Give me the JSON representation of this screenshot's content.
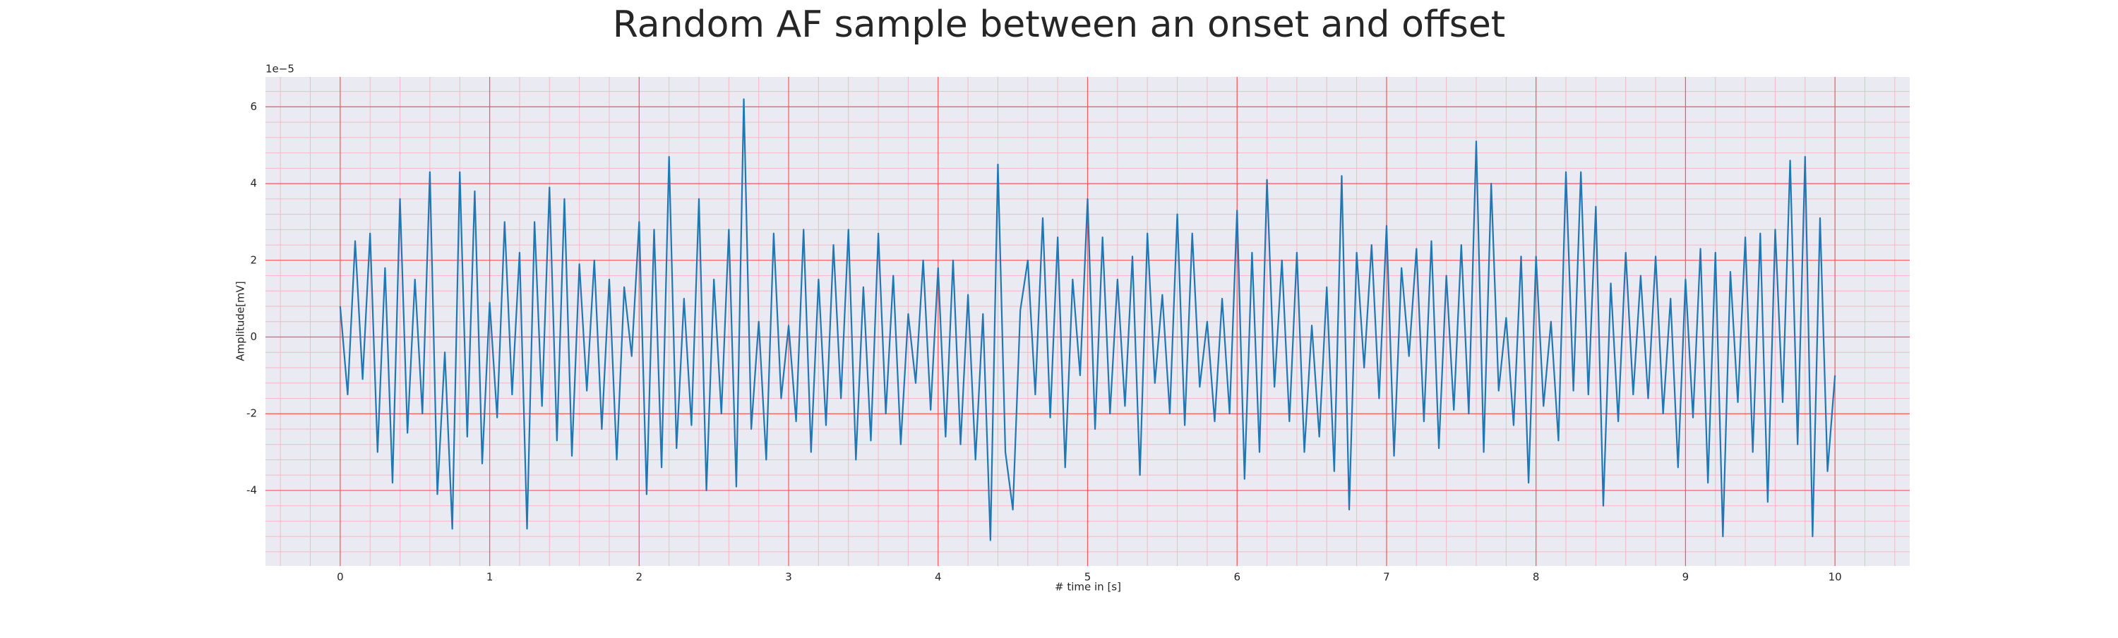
{
  "chart_data": {
    "type": "line",
    "title": "Random AF sample between an onset and offset",
    "xlabel": "# time in [s]",
    "ylabel": "Amplitude[mV]",
    "y_offset_label": "1e−5",
    "x": [
      0,
      0.05,
      0.1,
      0.15,
      0.2,
      0.25,
      0.3,
      0.35,
      0.4,
      0.45,
      0.5,
      0.55,
      0.6,
      0.65,
      0.7,
      0.75,
      0.8,
      0.85,
      0.9,
      0.95,
      1,
      1.05,
      1.1,
      1.15,
      1.2,
      1.25,
      1.3,
      1.35,
      1.4,
      1.45,
      1.5,
      1.55,
      1.6,
      1.65,
      1.7,
      1.75,
      1.8,
      1.85,
      1.9,
      1.95,
      2,
      2.05,
      2.1,
      2.15,
      2.2,
      2.25,
      2.3,
      2.35,
      2.4,
      2.45,
      2.5,
      2.55,
      2.6,
      2.65,
      2.7,
      2.75,
      2.8,
      2.85,
      2.9,
      2.95,
      3,
      3.05,
      3.1,
      3.15,
      3.2,
      3.25,
      3.3,
      3.35,
      3.4,
      3.45,
      3.5,
      3.55,
      3.6,
      3.65,
      3.7,
      3.75,
      3.8,
      3.85,
      3.9,
      3.95,
      4,
      4.05,
      4.1,
      4.15,
      4.2,
      4.25,
      4.3,
      4.35,
      4.4,
      4.45,
      4.5,
      4.55,
      4.6,
      4.65,
      4.7,
      4.75,
      4.8,
      4.85,
      4.9,
      4.95,
      5,
      5.05,
      5.1,
      5.15,
      5.2,
      5.25,
      5.3,
      5.35,
      5.4,
      5.45,
      5.5,
      5.55,
      5.6,
      5.65,
      5.7,
      5.75,
      5.8,
      5.85,
      5.9,
      5.95,
      6,
      6.05,
      6.1,
      6.15,
      6.2,
      6.25,
      6.3,
      6.35,
      6.4,
      6.45,
      6.5,
      6.55,
      6.6,
      6.65,
      6.7,
      6.75,
      6.8,
      6.85,
      6.9,
      6.95,
      7,
      7.05,
      7.1,
      7.15,
      7.2,
      7.25,
      7.3,
      7.35,
      7.4,
      7.45,
      7.5,
      7.55,
      7.6,
      7.65,
      7.7,
      7.75,
      7.8,
      7.85,
      7.9,
      7.95,
      8,
      8.05,
      8.1,
      8.15,
      8.2,
      8.25,
      8.3,
      8.35,
      8.4,
      8.45,
      8.5,
      8.55,
      8.6,
      8.65,
      8.7,
      8.75,
      8.8,
      8.85,
      8.9,
      8.95,
      9,
      9.05,
      9.1,
      9.15,
      9.2,
      9.25,
      9.3,
      9.35,
      9.4,
      9.45,
      9.5,
      9.55,
      9.6,
      9.65,
      9.7,
      9.75,
      9.8,
      9.85,
      9.9,
      9.95,
      10
    ],
    "values": [
      0.8,
      -1.5,
      2.5,
      -1.1,
      2.7,
      -3.0,
      1.8,
      -3.8,
      3.6,
      -2.5,
      1.5,
      -2.0,
      4.3,
      -4.1,
      -0.4,
      -5.0,
      4.3,
      -2.6,
      3.8,
      -3.3,
      0.9,
      -2.1,
      3.0,
      -1.5,
      2.2,
      -5.0,
      3.0,
      -1.8,
      3.9,
      -2.7,
      3.6,
      -3.1,
      1.9,
      -1.4,
      2.0,
      -2.4,
      1.5,
      -3.2,
      1.3,
      -0.5,
      3.0,
      -4.1,
      2.8,
      -3.4,
      4.7,
      -2.9,
      1.0,
      -2.3,
      3.6,
      -4.0,
      1.5,
      -2.0,
      2.8,
      -3.9,
      6.2,
      -2.4,
      0.4,
      -3.2,
      2.7,
      -1.6,
      0.3,
      -2.2,
      2.8,
      -3.0,
      1.5,
      -2.3,
      2.4,
      -1.6,
      2.8,
      -3.2,
      1.3,
      -2.7,
      2.7,
      -2.0,
      1.6,
      -2.8,
      0.6,
      -1.2,
      2.0,
      -1.9,
      1.8,
      -2.6,
      2.0,
      -2.8,
      1.1,
      -3.2,
      0.6,
      -5.3,
      4.5,
      -3.0,
      -4.5,
      0.7,
      2.0,
      -1.5,
      3.1,
      -2.1,
      2.6,
      -3.4,
      1.5,
      -1.0,
      3.6,
      -2.4,
      2.6,
      -2.0,
      1.5,
      -1.8,
      2.1,
      -3.6,
      2.7,
      -1.2,
      1.1,
      -2.0,
      3.2,
      -2.3,
      2.7,
      -1.3,
      0.4,
      -2.2,
      1.0,
      -2.0,
      3.3,
      -3.7,
      2.2,
      -3.0,
      4.1,
      -1.3,
      2.0,
      -2.2,
      2.2,
      -3.0,
      0.3,
      -2.6,
      1.3,
      -3.5,
      4.2,
      -4.5,
      2.2,
      -0.8,
      2.4,
      -1.6,
      2.9,
      -3.1,
      1.8,
      -0.5,
      2.3,
      -2.2,
      2.5,
      -2.9,
      1.6,
      -1.9,
      2.4,
      -2.0,
      5.1,
      -3.0,
      4.0,
      -1.4,
      0.5,
      -2.3,
      2.1,
      -3.8,
      2.1,
      -1.8,
      0.4,
      -2.7,
      4.3,
      -1.4,
      4.3,
      -1.5,
      3.4,
      -4.4,
      1.4,
      -2.2,
      2.2,
      -1.5,
      1.6,
      -1.6,
      2.1,
      -2.0,
      1.0,
      -3.4,
      1.5,
      -2.1,
      2.3,
      -3.8,
      2.2,
      -5.2,
      1.7,
      -1.7,
      2.6,
      -3.0,
      2.7,
      -4.3,
      2.8,
      -1.7,
      4.6,
      -2.8,
      4.7,
      -5.2,
      3.1,
      -3.5,
      -1.0
    ],
    "color": "#1f77b4",
    "xlim": [
      -0.5,
      10.5
    ],
    "xticks": [
      0,
      1,
      2,
      3,
      4,
      5,
      6,
      7,
      8,
      9,
      10
    ],
    "ylim": [
      -5.97,
      6.78
    ],
    "yticks": [
      -4,
      -2,
      0,
      2,
      4,
      6
    ],
    "grid": true,
    "grid_color": "#ff5555",
    "minor_grid_color": "#f5b8c4",
    "xminor_step": 0.2,
    "yminor_step": 0.4,
    "background": "#eaeaf2"
  }
}
